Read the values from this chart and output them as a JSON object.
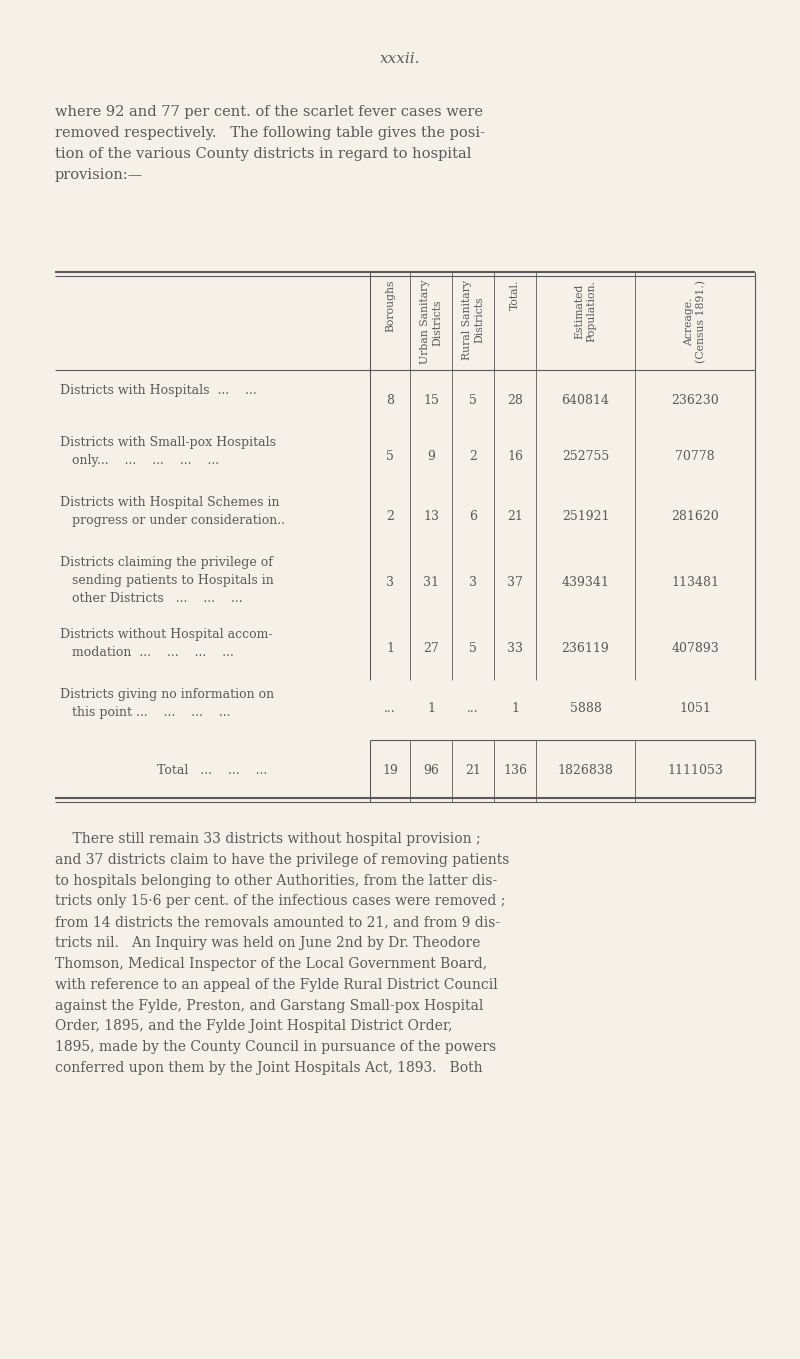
{
  "page_number": "xxxii.",
  "background_color": "#f5f0e8",
  "text_color": "#5a5a5a",
  "intro_paragraph": "where 92 and 77 per cent. of the scarlet fever cases were\nremoved respectively.   The following table gives the posi-\ntion of the various County districts in regard to hospital\nprovision:—",
  "col_headers": [
    "Boroughs",
    "Urban Sanitary\nDistricts",
    "Rural Sanitary\nDistricts",
    "Total.",
    "Estimated\nPopulation.",
    "Acreage.\n(Census 1891.)"
  ],
  "rows": [
    {
      "label_lines": [
        "Districts with Hospitals  ...    ..."
      ],
      "values": [
        "8",
        "15",
        "5",
        "28",
        "640814",
        "236230"
      ]
    },
    {
      "label_lines": [
        "Districts with Small-pox Hospitals",
        "   only...    ...    ...    ...    ..."
      ],
      "values": [
        "5",
        "9",
        "2",
        "16",
        "252755",
        "70778"
      ]
    },
    {
      "label_lines": [
        "Districts with Hospital Schemes in",
        "   progress or under consideration.."
      ],
      "values": [
        "2",
        "13",
        "6",
        "21",
        "251921",
        "281620"
      ]
    },
    {
      "label_lines": [
        "Districts claiming the privilege of",
        "   sending patients to Hospitals in",
        "   other Districts   ...    ...    ..."
      ],
      "values": [
        "3",
        "31",
        "3",
        "37",
        "439341",
        "113481"
      ]
    },
    {
      "label_lines": [
        "Districts without Hospital accom-",
        "   modation  ...    ...    ...    ..."
      ],
      "values": [
        "1",
        "27",
        "5",
        "33",
        "236119",
        "407893"
      ]
    },
    {
      "label_lines": [
        "Districts giving no information on",
        "   this point ...    ...    ...    ..."
      ],
      "values": [
        "...",
        "1",
        "...",
        "1",
        "5888",
        "1051"
      ]
    }
  ],
  "total_row": {
    "label": "Total   ...    ...    ...",
    "values": [
      "19",
      "96",
      "21",
      "136",
      "1826838",
      "1111053"
    ]
  },
  "footer_text": "    There still remain 33 districts without hospital provision ;\nand 37 districts claim to have the privilege of removing patients\nto hospitals belonging to other Authorities, from the latter dis-\ntricts only 15·6 per cent. of the infectious cases were removed ;\nfrom 14 districts the removals amounted to 21, and from 9 dis-\ntricts nil.   An Inquiry was held on June 2nd by Dr. Theodore\nThomson, Medical Inspector of the Local Government Board,\nwith reference to an appeal of the Fylde Rural District Council\nagainst the Fylde, Preston, and Garstang Small-pox Hospital\nOrder, 1895, and the Fylde Joint Hospital District Order,\n1895, made by the County Council in pursuance of the powers\nconferred upon them by the Joint Hospitals Act, 1893.   Both"
}
